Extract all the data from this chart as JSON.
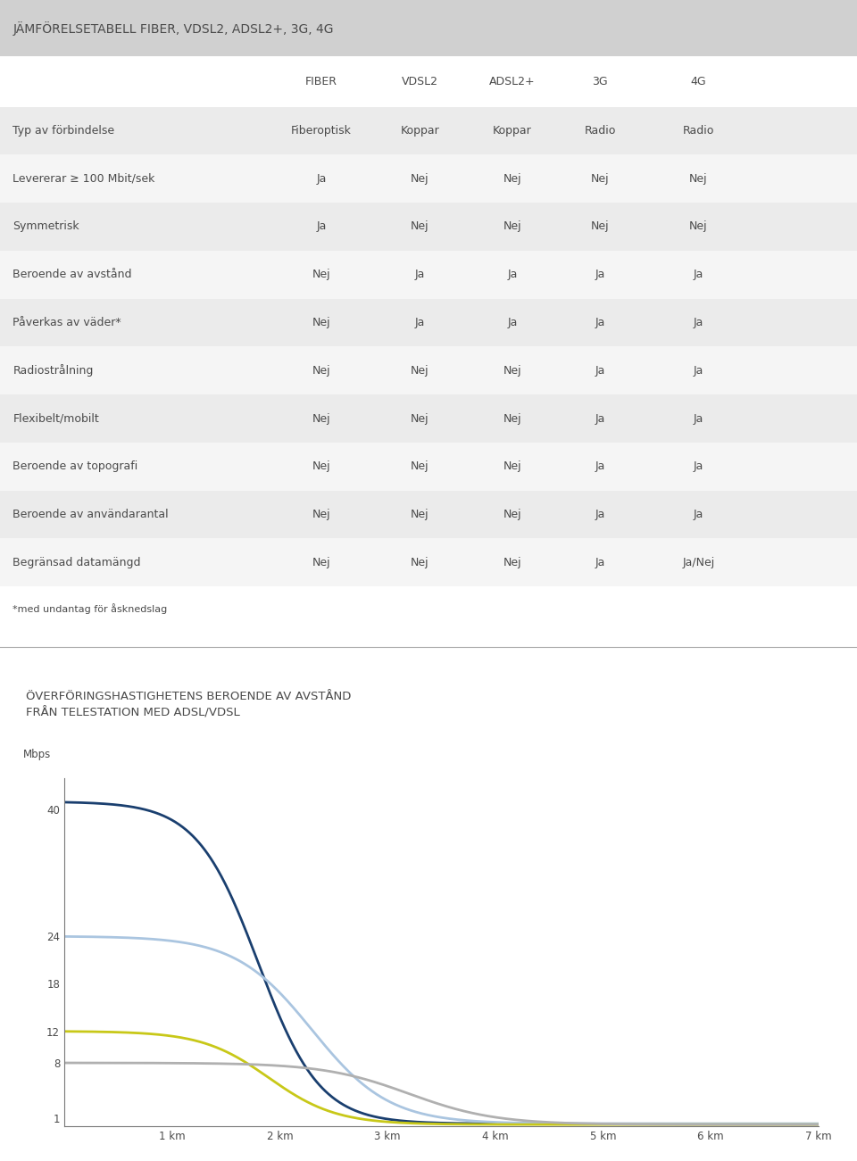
{
  "table_title": "JÄMFÖRELSETABELL FIBER, VDSL2, ADSL2+, 3G, 4G",
  "col_headers": [
    "",
    "FIBER",
    "VDSL2",
    "ADSL2+",
    "3G",
    "4G"
  ],
  "rows": [
    [
      "Typ av förbindelse",
      "Fiberoptisk",
      "Koppar",
      "Koppar",
      "Radio",
      "Radio"
    ],
    [
      "Levererar ≥ 100 Mbit/sek",
      "Ja",
      "Nej",
      "Nej",
      "Nej",
      "Nej"
    ],
    [
      "Symmetrisk",
      "Ja",
      "Nej",
      "Nej",
      "Nej",
      "Nej"
    ],
    [
      "Beroende av avstånd",
      "Nej",
      "Ja",
      "Ja",
      "Ja",
      "Ja"
    ],
    [
      "Påverkas av väder*",
      "Nej",
      "Ja",
      "Ja",
      "Ja",
      "Ja"
    ],
    [
      "Radiostrålning",
      "Nej",
      "Nej",
      "Nej",
      "Ja",
      "Ja"
    ],
    [
      "Flexibelt/mobilt",
      "Nej",
      "Nej",
      "Nej",
      "Ja",
      "Ja"
    ],
    [
      "Beroende av topografi",
      "Nej",
      "Nej",
      "Nej",
      "Ja",
      "Ja"
    ],
    [
      "Beroende av användarantal",
      "Nej",
      "Nej",
      "Nej",
      "Ja",
      "Ja"
    ],
    [
      "Begränsad datamängd",
      "Nej",
      "Nej",
      "Nej",
      "Ja",
      "Ja/Nej"
    ]
  ],
  "footnote": "*med undantag för åsknedslag",
  "chart_title_line1": "ÖVERFÖRINGSHASTIGHETENS BEROENDE AV AVSTÅND",
  "chart_title_line2": "FRÅN TELESTATION MED ADSL/VDSL",
  "chart_ylabel": "Mbps",
  "chart_xticks": [
    "1 km",
    "2 km",
    "3 km",
    "4 km",
    "5 km",
    "6 km",
    "7 km"
  ],
  "chart_yticks": [
    1,
    8,
    12,
    18,
    24,
    40
  ],
  "line_colors": [
    "#1a3f6f",
    "#aac5e0",
    "#c8c818",
    "#b0b0b0"
  ],
  "bg_color": "#ffffff",
  "table_header_bg": "#d8d8d8",
  "table_row_bg_odd": "#ebebeb",
  "table_row_bg_even": "#f5f5f5",
  "title_bg": "#d0d0d0",
  "text_color": "#4a4a4a",
  "font_size_title": 10,
  "font_size_col_header": 9,
  "font_size_table": 9,
  "font_size_chart_title": 9.5,
  "font_size_axis": 8.5,
  "separator_color": "#aaaaaa"
}
